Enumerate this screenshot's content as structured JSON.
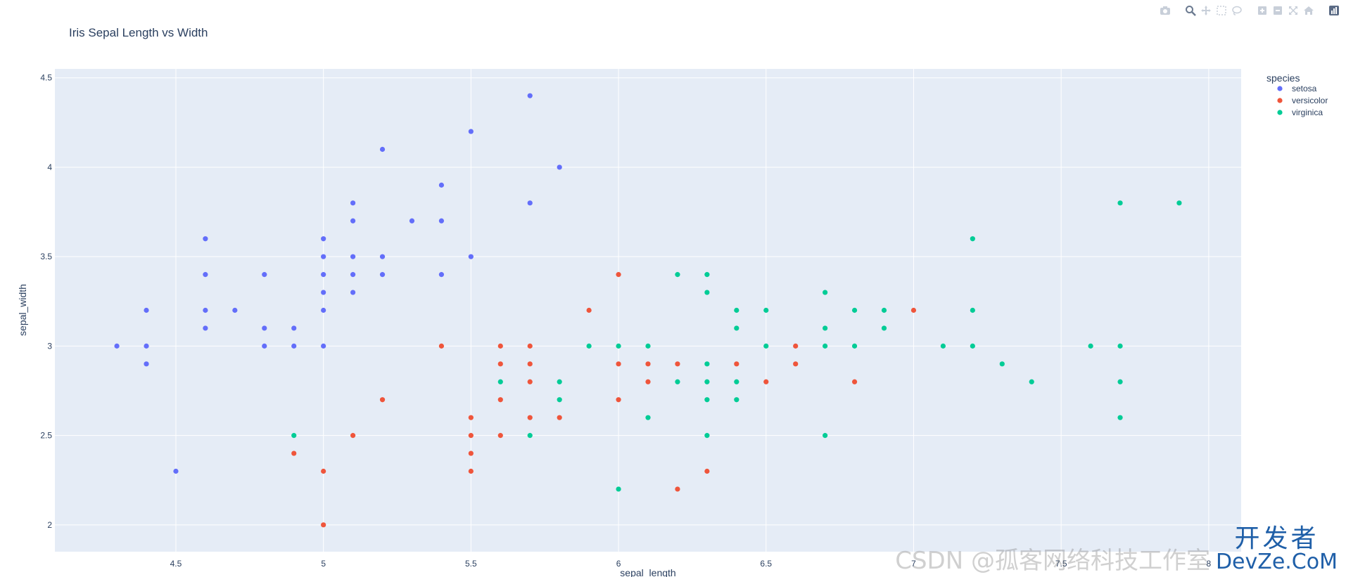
{
  "modebar": {
    "icons": [
      "camera-icon",
      "zoom-icon",
      "pan-icon",
      "box-select-icon",
      "lasso-select-icon",
      "zoom-in-icon",
      "zoom-out-icon",
      "autoscale-icon",
      "reset-axes-icon",
      "plotly-logo-icon"
    ]
  },
  "watermark": {
    "text": "CSDN @孤客网络科技工作室",
    "logo_top": "开发者",
    "logo_bottom": "DevZe.CoM"
  },
  "colors": {
    "plot_bg": "#E5ECF6",
    "grid": "#ffffff",
    "text": "#2a3f5f",
    "setosa": "#636EFA",
    "versicolor": "#EF553B",
    "virginica": "#00CC96"
  },
  "chart_data": {
    "type": "scatter",
    "title": "Iris Sepal Length vs Width",
    "xlabel": "sepal_length",
    "ylabel": "sepal_width",
    "xlim": [
      4.09,
      8.11
    ],
    "ylim": [
      1.85,
      4.55
    ],
    "xticks": [
      4.5,
      5,
      5.5,
      6,
      6.5,
      7,
      7.5,
      8
    ],
    "xtick_labels": [
      "4.5",
      "5",
      "5.5",
      "6",
      "6.5",
      "7",
      "7.5",
      "8"
    ],
    "yticks": [
      2,
      2.5,
      3,
      3.5,
      4,
      4.5
    ],
    "ytick_labels": [
      "2",
      "2.5",
      "3",
      "3.5",
      "4",
      "4.5"
    ],
    "grid": true,
    "legend_title": "species",
    "legend_position": "top-right-outside",
    "series": [
      {
        "name": "setosa",
        "color": "#636EFA",
        "points": [
          [
            4.3,
            3.0
          ],
          [
            4.4,
            3.2
          ],
          [
            4.4,
            3.0
          ],
          [
            4.4,
            2.9
          ],
          [
            4.5,
            2.3
          ],
          [
            4.6,
            3.6
          ],
          [
            4.6,
            3.4
          ],
          [
            4.6,
            3.2
          ],
          [
            4.6,
            3.1
          ],
          [
            4.7,
            3.2
          ],
          [
            4.8,
            3.4
          ],
          [
            4.8,
            3.1
          ],
          [
            4.8,
            3.0
          ],
          [
            4.9,
            3.1
          ],
          [
            4.9,
            3.0
          ],
          [
            5.0,
            3.6
          ],
          [
            5.0,
            3.5
          ],
          [
            5.0,
            3.4
          ],
          [
            5.0,
            3.3
          ],
          [
            5.0,
            3.2
          ],
          [
            5.0,
            3.0
          ],
          [
            5.1,
            3.8
          ],
          [
            5.1,
            3.7
          ],
          [
            5.1,
            3.5
          ],
          [
            5.1,
            3.4
          ],
          [
            5.1,
            3.3
          ],
          [
            5.2,
            4.1
          ],
          [
            5.2,
            3.5
          ],
          [
            5.2,
            3.4
          ],
          [
            5.3,
            3.7
          ],
          [
            5.4,
            3.9
          ],
          [
            5.4,
            3.7
          ],
          [
            5.4,
            3.4
          ],
          [
            5.5,
            4.2
          ],
          [
            5.5,
            3.5
          ],
          [
            5.7,
            4.4
          ],
          [
            5.7,
            3.8
          ],
          [
            5.8,
            4.0
          ]
        ]
      },
      {
        "name": "versicolor",
        "color": "#EF553B",
        "points": [
          [
            4.9,
            2.4
          ],
          [
            5.0,
            2.3
          ],
          [
            5.0,
            2.0
          ],
          [
            5.1,
            2.5
          ],
          [
            5.2,
            2.7
          ],
          [
            5.4,
            3.0
          ],
          [
            5.5,
            2.6
          ],
          [
            5.5,
            2.5
          ],
          [
            5.5,
            2.4
          ],
          [
            5.5,
            2.3
          ],
          [
            5.6,
            3.0
          ],
          [
            5.6,
            2.9
          ],
          [
            5.6,
            2.7
          ],
          [
            5.6,
            2.5
          ],
          [
            5.7,
            3.0
          ],
          [
            5.7,
            2.9
          ],
          [
            5.7,
            2.8
          ],
          [
            5.7,
            2.6
          ],
          [
            5.8,
            2.6
          ],
          [
            5.9,
            3.2
          ],
          [
            6.0,
            3.4
          ],
          [
            6.0,
            2.9
          ],
          [
            6.0,
            2.7
          ],
          [
            6.1,
            2.9
          ],
          [
            6.1,
            2.8
          ],
          [
            6.2,
            2.9
          ],
          [
            6.2,
            2.2
          ],
          [
            6.3,
            2.3
          ],
          [
            6.4,
            2.9
          ],
          [
            6.5,
            2.8
          ],
          [
            6.6,
            3.0
          ],
          [
            6.6,
            2.9
          ],
          [
            6.8,
            2.8
          ],
          [
            7.0,
            3.2
          ]
        ]
      },
      {
        "name": "virginica",
        "color": "#00CC96",
        "points": [
          [
            4.9,
            2.5
          ],
          [
            5.6,
            2.8
          ],
          [
            5.7,
            2.5
          ],
          [
            5.8,
            2.8
          ],
          [
            5.8,
            2.7
          ],
          [
            5.9,
            3.0
          ],
          [
            6.0,
            3.0
          ],
          [
            6.0,
            2.2
          ],
          [
            6.1,
            3.0
          ],
          [
            6.1,
            2.6
          ],
          [
            6.2,
            3.4
          ],
          [
            6.2,
            2.8
          ],
          [
            6.3,
            3.4
          ],
          [
            6.3,
            3.3
          ],
          [
            6.3,
            2.9
          ],
          [
            6.3,
            2.8
          ],
          [
            6.3,
            2.7
          ],
          [
            6.3,
            2.5
          ],
          [
            6.4,
            3.2
          ],
          [
            6.4,
            3.1
          ],
          [
            6.4,
            2.8
          ],
          [
            6.4,
            2.7
          ],
          [
            6.5,
            3.2
          ],
          [
            6.5,
            3.0
          ],
          [
            6.7,
            3.3
          ],
          [
            6.7,
            3.1
          ],
          [
            6.7,
            3.0
          ],
          [
            6.7,
            2.5
          ],
          [
            6.8,
            3.2
          ],
          [
            6.8,
            3.0
          ],
          [
            6.9,
            3.2
          ],
          [
            6.9,
            3.1
          ],
          [
            7.1,
            3.0
          ],
          [
            7.2,
            3.6
          ],
          [
            7.2,
            3.2
          ],
          [
            7.2,
            3.0
          ],
          [
            7.3,
            2.9
          ],
          [
            7.4,
            2.8
          ],
          [
            7.6,
            3.0
          ],
          [
            7.7,
            3.8
          ],
          [
            7.7,
            3.0
          ],
          [
            7.7,
            2.8
          ],
          [
            7.7,
            2.6
          ],
          [
            7.9,
            3.8
          ]
        ]
      }
    ]
  }
}
